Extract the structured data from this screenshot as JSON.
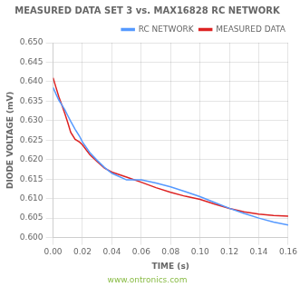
{
  "chart_data": {
    "type": "line",
    "title": "MEASURED DATA SET 3 vs. MAX16828 RC NETWORK",
    "x_label": "TIME (s)",
    "y_label": "DIODE VOLTAGE (mV)",
    "annotations": [
      {
        "text": "www.ontronics.com",
        "color": "#88bb44"
      }
    ],
    "x": [
      0.0,
      0.002,
      0.004,
      0.006,
      0.008,
      0.01,
      0.012,
      0.015,
      0.018,
      0.02,
      0.025,
      0.03,
      0.035,
      0.04,
      0.05,
      0.06,
      0.07,
      0.08,
      0.09,
      0.1,
      0.11,
      0.12,
      0.13,
      0.14,
      0.15,
      0.16
    ],
    "series": [
      {
        "name": "RC NETWORK",
        "color": "#5599ff",
        "values": [
          0.6385,
          0.6368,
          0.6352,
          0.634,
          0.6328,
          0.6313,
          0.6298,
          0.6278,
          0.626,
          0.6245,
          0.6218,
          0.6198,
          0.618,
          0.6165,
          0.6148,
          0.6148,
          0.614,
          0.613,
          0.6118,
          0.6105,
          0.609,
          0.6075,
          0.6062,
          0.605,
          0.604,
          0.6032
        ]
      },
      {
        "name": "MEASURED DATA",
        "color": "#dd2222",
        "values": [
          0.641,
          0.6385,
          0.636,
          0.634,
          0.6318,
          0.6295,
          0.627,
          0.6252,
          0.6245,
          0.6238,
          0.6213,
          0.6195,
          0.6178,
          0.6168,
          0.6155,
          0.6142,
          0.6128,
          0.6116,
          0.6106,
          0.6098,
          0.6086,
          0.6075,
          0.6066,
          0.606,
          0.6057,
          0.6055
        ]
      }
    ],
    "xlim": [
      0.0,
      0.16
    ],
    "ylim": [
      0.6,
      0.65
    ],
    "xticks": [
      {
        "value": 0.0,
        "label": "0.00"
      },
      {
        "value": 0.02,
        "label": "0.02"
      },
      {
        "value": 0.04,
        "label": "0.04"
      },
      {
        "value": 0.06,
        "label": "0.06"
      },
      {
        "value": 0.08,
        "label": "0.08"
      },
      {
        "value": 0.1,
        "label": "0.10"
      },
      {
        "value": 0.12,
        "label": "0.12"
      },
      {
        "value": 0.14,
        "label": "0.14"
      },
      {
        "value": 0.16,
        "label": "0.16"
      }
    ],
    "yticks": [
      {
        "value": 0.6,
        "label": "0.600"
      },
      {
        "value": 0.605,
        "label": "0.605"
      },
      {
        "value": 0.61,
        "label": "0.610"
      },
      {
        "value": 0.615,
        "label": "0.615"
      },
      {
        "value": 0.62,
        "label": "0.620"
      },
      {
        "value": 0.625,
        "label": "0.625"
      },
      {
        "value": 0.63,
        "label": "0.630"
      },
      {
        "value": 0.635,
        "label": "0.635"
      },
      {
        "value": 0.64,
        "label": "0.640"
      },
      {
        "value": 0.645,
        "label": "0.645"
      },
      {
        "value": 0.65,
        "label": "0.650"
      }
    ],
    "grid": true,
    "legend": "upper right"
  }
}
